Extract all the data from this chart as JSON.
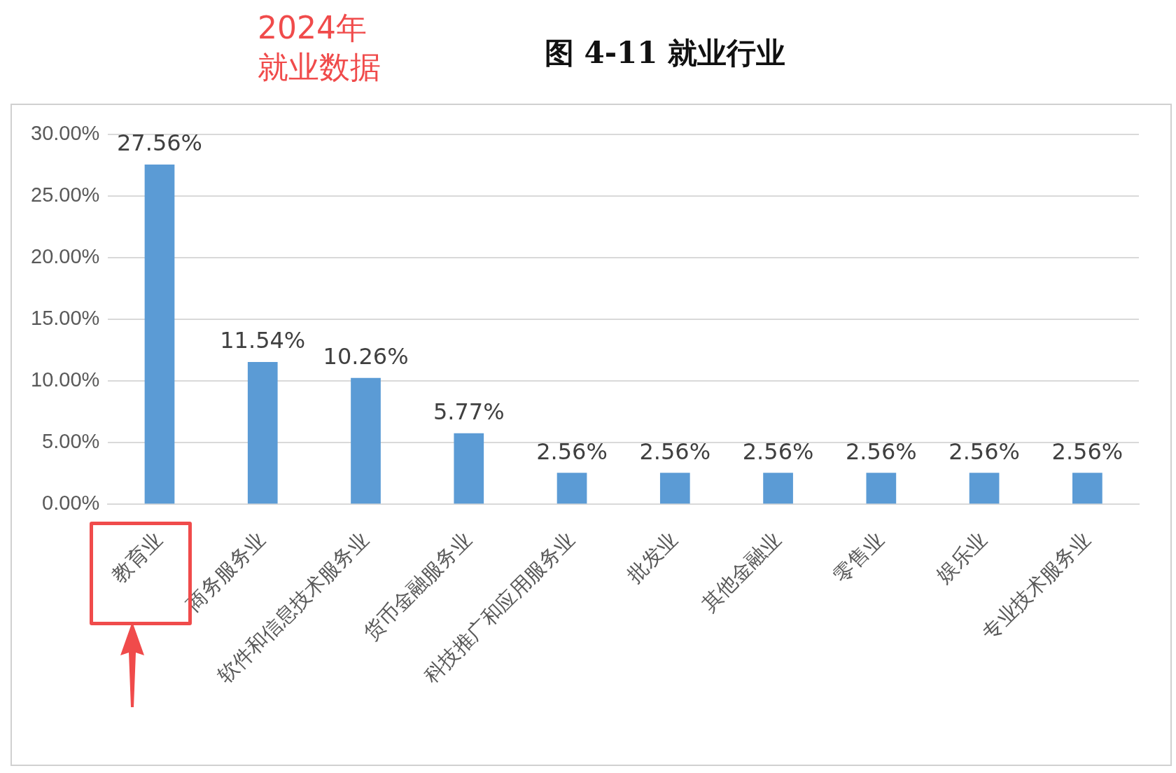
{
  "chart_data": {
    "type": "bar",
    "title": "图 4-11 就业行业",
    "annotations": [
      "2024年",
      "就业数据"
    ],
    "categories": [
      "教育业",
      "商务服务业",
      "软件和信息技术服务业",
      "货币金融服务业",
      "科技推广和应用服务业",
      "批发业",
      "其他金融业",
      "零售业",
      "娱乐业",
      "专业技术服务业"
    ],
    "values": [
      27.56,
      11.54,
      10.26,
      5.77,
      2.56,
      2.56,
      2.56,
      2.56,
      2.56,
      2.56
    ],
    "value_labels": [
      "27.56%",
      "11.54%",
      "10.26%",
      "5.77%",
      "2.56%",
      "2.56%",
      "2.56%",
      "2.56%",
      "2.56%",
      "2.56%"
    ],
    "color": "#5b9bd5",
    "ylim": [
      0,
      30
    ],
    "yticks": [
      {
        "value": 0,
        "label": "0.00%"
      },
      {
        "value": 5,
        "label": "5.00%"
      },
      {
        "value": 10,
        "label": "10.00%"
      },
      {
        "value": 15,
        "label": "15.00%"
      },
      {
        "value": 20,
        "label": "20.00%"
      },
      {
        "value": 25,
        "label": "25.00%"
      },
      {
        "value": 30,
        "label": "30.00%"
      }
    ],
    "grid": "y",
    "legend": false
  }
}
